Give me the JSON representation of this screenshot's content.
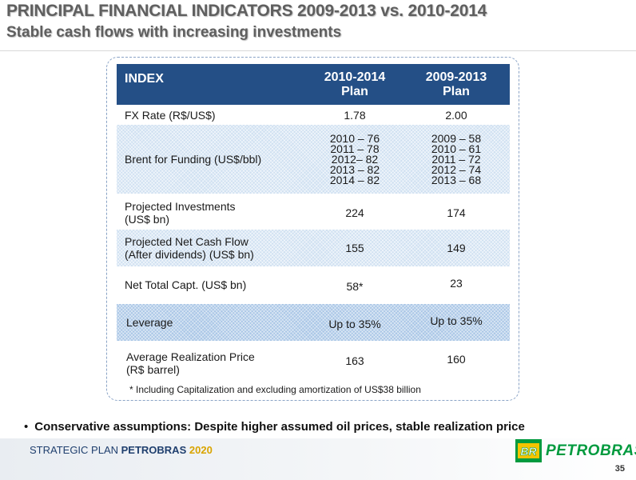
{
  "header": {
    "title": "PRINCIPAL FINANCIAL INDICATORS 2009-2013 vs. 2010-2014",
    "subtitle": "Stable cash flows with increasing investments"
  },
  "table": {
    "header": {
      "index": "INDEX",
      "plan_2010_line1": "2010-2014",
      "plan_2010_line2": "Plan",
      "plan_2009_line1": "2009-2013",
      "plan_2009_line2": "Plan"
    },
    "rows": [
      {
        "label1": "FX Rate (R$/US$)",
        "label2": "",
        "v2010": [
          "1.78"
        ],
        "v2009": [
          "2.00"
        ]
      },
      {
        "label1": "Brent for Funding (US$/bbl)",
        "label2": "",
        "v2010": [
          "2010 – 76",
          "2011 – 78",
          "2012–  82",
          "2013 – 82",
          "2014 – 82"
        ],
        "v2009": [
          "2009 – 58",
          "2010 – 61",
          "2011 – 72",
          "2012 – 74",
          "2013 – 68"
        ]
      },
      {
        "label1": "Projected Investments",
        "label2": "(US$ bn)",
        "v2010": [
          "224"
        ],
        "v2009": [
          "174"
        ]
      },
      {
        "label1": "Projected Net Cash Flow",
        "label2": "(After dividends) (US$ bn)",
        "v2010": [
          "155"
        ],
        "v2009": [
          "149"
        ]
      },
      {
        "label1": "Net Total Capt. (US$ bn)",
        "label2": "",
        "v2010": [
          "58*"
        ],
        "v2009": [
          "23"
        ]
      },
      {
        "label1": "Leverage",
        "label2": "",
        "v2010": [
          "Up to 35%"
        ],
        "v2009": [
          "Up to 35%"
        ]
      },
      {
        "label1": "Average Realization Price",
        "label2": "(R$ barrel)",
        "v2010": [
          "163"
        ],
        "v2009": [
          "160"
        ]
      }
    ],
    "note": "* Including Capitalization and excluding amortization of US$38 billion"
  },
  "bullet": {
    "marker": "•",
    "text": "Conservative assumptions: Despite higher assumed oil prices, stable realization price"
  },
  "footer": {
    "prefix": "STRATEGIC PLAN ",
    "brand": "PETROBRAS",
    "year": "2020",
    "logo_text": "BR",
    "logo_word": "PETROBRAS",
    "page_number": "35"
  },
  "colors": {
    "header_bg": "#244f86",
    "shade_light": "#cfe0f1",
    "shade_strong": "#a9c6e6",
    "petrobras_green": "#009a3e",
    "petrobras_yellow": "#f5c400"
  }
}
